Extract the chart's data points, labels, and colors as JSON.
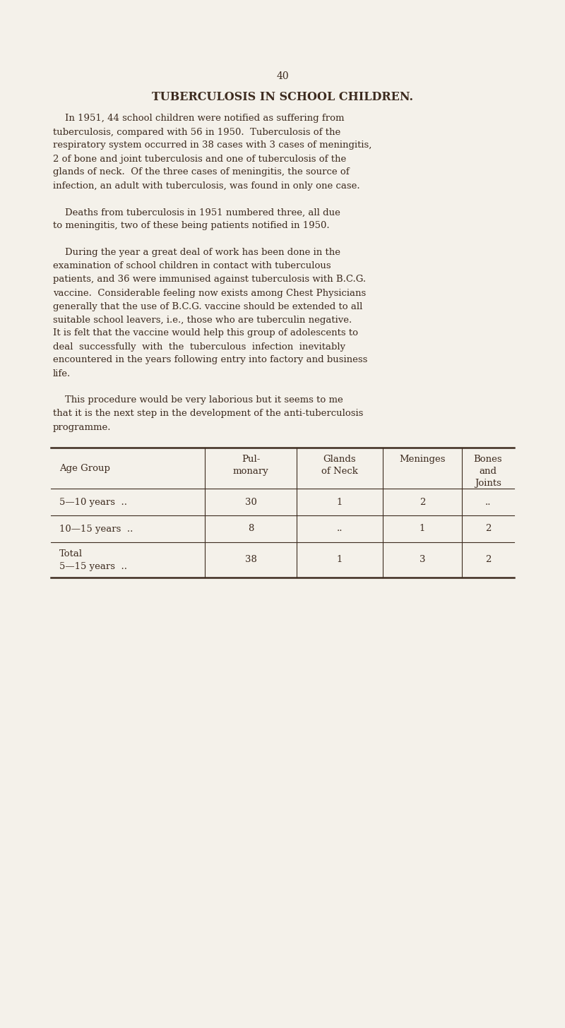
{
  "page_number": "40",
  "title": "TUBERCULOSIS IN SCHOOL CHILDREN.",
  "background_color": "#f4f1ea",
  "text_color": "#3d2b1f",
  "paragraphs": [
    "In 1951, 44 school children were notified as suffering from tuberculosis, compared with 56 in 1950.  Tuberculosis of the respiratory system occurred in 38 cases with 3 cases of meningitis, 2 of bone and joint tuberculosis and one of tuberculosis of the glands of neck.  Of the three cases of meningitis, the source of infection, an adult with tuberculosis, was found in only one case.",
    "Deaths from tuberculosis in 1951 numbered three, all due to meningitis, two of these being patients notified in 1950.",
    "During the year a great deal of work has been done in the examination of school children in contact with tuberculous patients, and 36 were immunised against tuberculosis with B.C.G. vaccine.  Considerable feeling now exists among Chest Physicians generally that the use of B.C.G. vaccine should be extended to all suitable school leavers, i.e., those who are tuberculin negative. It is felt that the vaccine would help this group of adolescents to deal successfully with the tuberculous infection inevitably encountered in the years following entry into factory and business life.",
    "This procedure would be very laborious but it seems to me that it is the next step in the development of the anti-tuberculosis programme."
  ],
  "para1_lines": [
    "    In 1951, 44 school children were notified as suffering from",
    "tuberculosis, compared with 56 in 1950.  Tuberculosis of the",
    "respiratory system occurred in 38 cases with 3 cases of meningitis,",
    "2 of bone and joint tuberculosis and one of tuberculosis of the",
    "glands of neck.  Of the three cases of meningitis, the source of",
    "infection, an adult with tuberculosis, was found in only one case."
  ],
  "para2_lines": [
    "    Deaths from tuberculosis in 1951 numbered three, all due",
    "to meningitis, two of these being patients notified in 1950."
  ],
  "para3_lines": [
    "    During the year a great deal of work has been done in the",
    "examination of school children in contact with tuberculous",
    "patients, and 36 were immunised against tuberculosis with B.C.G.",
    "vaccine.  Considerable feeling now exists among Chest Physicians",
    "generally that the use of B.C.G. vaccine should be extended to all",
    "suitable school leavers, i.e., those who are tuberculin negative.",
    "It is felt that the vaccine would help this group of adolescents to",
    "deal  successfully  with  the  tuberculous  infection  inevitably",
    "encountered in the years following entry into factory and business",
    "life."
  ],
  "para4_lines": [
    "    This procedure would be very laborious but it seems to me",
    "that it is the next step in the development of the anti-tuberculosis",
    "programme."
  ],
  "table_col_headers": [
    "Age Group",
    "Pul-\nmonary",
    "Glands\nof Neck",
    "Meninges",
    "Bones\nand\nJoints"
  ],
  "table_rows": [
    [
      "5—10 years  ..",
      "30",
      "1",
      "2",
      ".."
    ],
    [
      "10—15 years  ..",
      "8",
      "..",
      "1",
      "2"
    ],
    [
      "Total\n5—15 years  ..",
      "38",
      "1",
      "3",
      "2"
    ]
  ],
  "title_fontsize": 11.5,
  "body_fontsize": 9.5,
  "table_fontsize": 9.5,
  "page_num_fontsize": 10
}
